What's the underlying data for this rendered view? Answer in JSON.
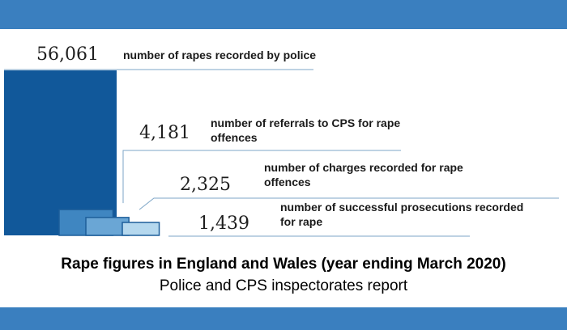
{
  "chart_data": {
    "type": "bar",
    "categories": [
      "number of rapes recorded by police",
      "number of referrals to CPS for rape offences",
      "number of charges recorded for rape offences",
      "number of successful prosecutions recorded for rape"
    ],
    "values": [
      56061,
      4181,
      2325,
      1439
    ],
    "value_labels": [
      "56,061",
      "4,181",
      "2,325",
      "1,439"
    ],
    "label_lines": [
      [
        "number of rapes recorded by police"
      ],
      [
        "number of referrals to CPS for rape",
        "offences"
      ],
      [
        "number of charges recorded for rape",
        "offences"
      ],
      [
        "number of successful prosecutions recorded",
        "for rape"
      ]
    ],
    "colors": [
      "#11589a",
      "#3f86c1",
      "#6aa6d5",
      "#b5d8ee"
    ],
    "title": "",
    "xlabel": "",
    "ylabel": ""
  },
  "caption": {
    "title": "Rape figures in England and Wales (year ending March 2020)",
    "subtitle": "Police and CPS inspectorates report"
  },
  "colors": {
    "band": "#3a7fbf",
    "connector": "#7ea6c7"
  }
}
